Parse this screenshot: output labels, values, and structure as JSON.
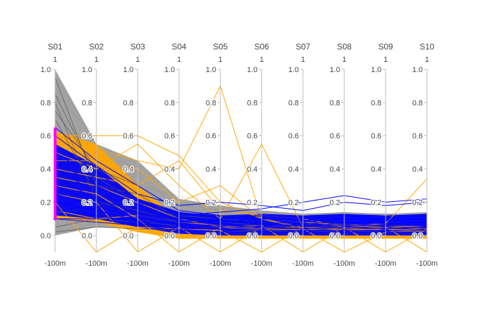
{
  "chart_data": {
    "type": "parallel-coordinates",
    "dimensions": [
      {
        "name": "S01",
        "top": "1",
        "bottom": "-100m"
      },
      {
        "name": "S02",
        "top": "1",
        "bottom": "-100m"
      },
      {
        "name": "S03",
        "top": "1",
        "bottom": "-100m"
      },
      {
        "name": "S04",
        "top": "1",
        "bottom": "-100m"
      },
      {
        "name": "S05",
        "top": "1",
        "bottom": "-100m"
      },
      {
        "name": "S06",
        "top": "1",
        "bottom": "-100m"
      },
      {
        "name": "S07",
        "top": "1",
        "bottom": "-100m"
      },
      {
        "name": "S08",
        "top": "1",
        "bottom": "-100m"
      },
      {
        "name": "S09",
        "top": "1",
        "bottom": "-100m"
      },
      {
        "name": "S10",
        "top": "1",
        "bottom": "-100m"
      }
    ],
    "range": [
      -0.1,
      1.0
    ],
    "ticks": [
      0.0,
      0.2,
      0.4,
      0.6,
      0.8,
      1.0
    ],
    "tick_labels": [
      "0.0",
      "0.2",
      "0.4",
      "0.6",
      "0.8",
      "1.0"
    ],
    "brush": {
      "dimension": "S01",
      "range": [
        0.1,
        0.65
      ],
      "color": "#ff00ff"
    },
    "series": [
      {
        "group": "context-gray",
        "color": "#555555",
        "lines": [
          [
            0.95,
            0.3,
            0.25,
            0.1,
            0.08,
            0.06,
            0.05,
            0.06,
            0.05,
            0.06
          ],
          [
            0.85,
            0.35,
            0.2,
            0.12,
            0.1,
            0.08,
            0.07,
            0.05,
            0.06,
            0.05
          ],
          [
            0.8,
            0.2,
            0.15,
            0.08,
            0.06,
            0.05,
            0.04,
            0.05,
            0.04,
            0.05
          ],
          [
            0.75,
            0.4,
            0.3,
            0.15,
            0.12,
            0.1,
            0.08,
            0.07,
            0.06,
            0.07
          ],
          [
            0.7,
            0.25,
            0.1,
            0.05,
            0.04,
            0.03,
            0.05,
            0.04,
            0.03,
            0.04
          ],
          [
            0.05,
            0.1,
            0.08,
            0.06,
            0.05,
            0.04,
            0.03,
            0.04,
            0.05,
            0.04
          ],
          [
            0.02,
            0.05,
            0.04,
            0.03,
            0.02,
            0.03,
            0.02,
            0.03,
            0.02,
            0.03
          ]
        ]
      },
      {
        "group": "orange",
        "color": "#ffa500",
        "lines": [
          [
            0.6,
            0.6,
            0.6,
            0.48,
            0.2,
            0.1,
            0.05,
            0.04,
            0.05,
            0.05
          ],
          [
            0.55,
            0.52,
            0.45,
            0.4,
            0.9,
            0.1,
            0.04,
            0.05,
            0.04,
            0.05
          ],
          [
            0.5,
            0.4,
            0.55,
            0.3,
            0.1,
            0.55,
            0.05,
            0.03,
            0.05,
            0.04
          ],
          [
            0.45,
            0.45,
            0.4,
            0.2,
            0.3,
            0.1,
            0.08,
            0.06,
            0.07,
            0.34
          ],
          [
            0.4,
            0.35,
            0.3,
            0.45,
            0.15,
            0.12,
            0.1,
            0.05,
            0.06,
            0.05
          ],
          [
            0.35,
            0.3,
            0.2,
            0.1,
            0.05,
            0.06,
            -0.1,
            0.05,
            0.03,
            0.04
          ],
          [
            0.3,
            0.25,
            0.1,
            -0.1,
            0.05,
            0.03,
            0.04,
            -0.1,
            0.02,
            0.03
          ],
          [
            0.25,
            0.2,
            -0.1,
            0.05,
            -0.1,
            0.05,
            0.03,
            0.05,
            -0.1,
            0.04
          ],
          [
            0.2,
            -0.1,
            0.05,
            0.04,
            0.03,
            -0.1,
            0.05,
            0.04,
            0.05,
            -0.1
          ],
          [
            0.15,
            0.1,
            0.12,
            0.08,
            0.06,
            0.04,
            0.05,
            0.03,
            0.04,
            0.02
          ]
        ]
      },
      {
        "group": "blue",
        "color": "#0000ff",
        "lines": [
          [
            0.65,
            0.45,
            0.3,
            0.15,
            0.12,
            0.1,
            0.09,
            0.1,
            0.09,
            0.1
          ],
          [
            0.6,
            0.42,
            0.25,
            0.18,
            0.2,
            0.18,
            0.15,
            0.2,
            0.18,
            0.2
          ],
          [
            0.55,
            0.38,
            0.22,
            0.14,
            0.1,
            0.12,
            0.1,
            0.12,
            0.1,
            0.12
          ],
          [
            0.5,
            0.34,
            0.2,
            0.12,
            0.14,
            0.16,
            0.2,
            0.24,
            0.2,
            0.22
          ],
          [
            0.45,
            0.3,
            0.18,
            0.1,
            0.08,
            0.1,
            0.08,
            0.1,
            0.09,
            0.1
          ],
          [
            0.4,
            0.26,
            0.16,
            0.1,
            0.09,
            0.08,
            0.07,
            0.08,
            0.07,
            0.08
          ],
          [
            0.35,
            0.22,
            0.14,
            0.09,
            0.08,
            0.07,
            0.06,
            0.07,
            0.06,
            0.07
          ],
          [
            0.3,
            0.2,
            0.12,
            0.08,
            0.07,
            0.06,
            0.06,
            0.06,
            0.06,
            0.06
          ],
          [
            0.25,
            0.18,
            0.1,
            0.07,
            0.06,
            0.05,
            0.05,
            0.05,
            0.05,
            0.05
          ],
          [
            0.2,
            0.15,
            0.09,
            0.06,
            0.05,
            0.05,
            0.04,
            0.05,
            0.04,
            0.05
          ],
          [
            0.15,
            0.12,
            0.08,
            0.05,
            0.04,
            0.04,
            0.04,
            0.04,
            0.04,
            0.04
          ],
          [
            0.1,
            0.1,
            0.07,
            0.04,
            0.04,
            0.03,
            0.03,
            0.03,
            0.03,
            0.03
          ],
          [
            0.1,
            0.08,
            0.06,
            0.03,
            0.02,
            0.02,
            0.02,
            0.02,
            0.02,
            0.02
          ]
        ]
      }
    ]
  }
}
